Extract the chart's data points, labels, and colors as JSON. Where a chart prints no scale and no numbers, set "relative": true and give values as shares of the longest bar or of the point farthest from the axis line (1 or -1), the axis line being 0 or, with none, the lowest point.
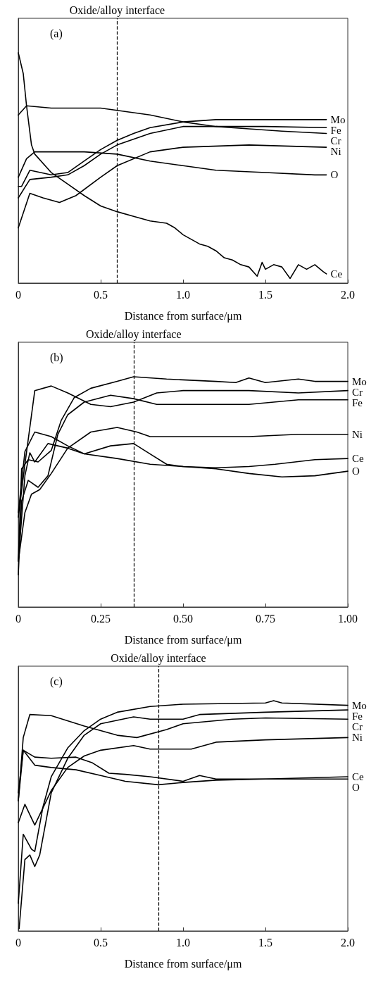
{
  "chart_data": [
    {
      "type": "line",
      "title": "(a)",
      "xlabel": "Distance from surface/μm",
      "relative": true,
      "xlim": [
        0,
        2
      ],
      "xticks": [
        0,
        0.5,
        {
          "value": 1,
          "label": "1.0"
        },
        1.5,
        {
          "value": 2,
          "label": "2.0"
        }
      ],
      "tick_labels": "x",
      "grid": false,
      "legend": false,
      "marker": "none",
      "line_style": "solid",
      "ref_lines": [
        {
          "axis": "x",
          "value": 0.6,
          "label": "Oxide/alloy interface",
          "line_style": "dashed"
        }
      ],
      "series": [
        {
          "name": "Cr",
          "color": "#000000",
          "x": [
            0,
            0.05,
            0.2,
            0.5,
            0.6,
            0.8,
            1.0,
            1.2,
            1.4,
            1.6,
            1.87
          ],
          "values": [
            0.73,
            0.77,
            0.76,
            0.76,
            0.75,
            0.73,
            0.7,
            0.68,
            0.67,
            0.66,
            0.65
          ]
        },
        {
          "name": "Mo",
          "color": "#000000",
          "x": [
            0,
            0.02,
            0.07,
            0.2,
            0.3,
            0.4,
            0.5,
            0.6,
            0.7,
            0.8,
            1.0,
            1.2,
            1.5,
            1.87
          ],
          "values": [
            0.42,
            0.42,
            0.49,
            0.47,
            0.48,
            0.53,
            0.58,
            0.62,
            0.65,
            0.675,
            0.7,
            0.71,
            0.71,
            0.71
          ]
        },
        {
          "name": "Fe",
          "color": "#000000",
          "x": [
            0,
            0.07,
            0.2,
            0.3,
            0.4,
            0.5,
            0.6,
            0.8,
            1.0,
            1.2,
            1.5,
            1.87
          ],
          "values": [
            0.37,
            0.45,
            0.46,
            0.47,
            0.51,
            0.56,
            0.6,
            0.65,
            0.68,
            0.68,
            0.68,
            0.675
          ]
        },
        {
          "name": "Ni",
          "color": "#000000",
          "x": [
            0,
            0.07,
            0.15,
            0.25,
            0.35,
            0.5,
            0.6,
            0.8,
            1.0,
            1.4,
            1.87
          ],
          "values": [
            0.24,
            0.39,
            0.37,
            0.35,
            0.38,
            0.46,
            0.51,
            0.57,
            0.59,
            0.6,
            0.59
          ]
        },
        {
          "name": "O",
          "color": "#000000",
          "x": [
            0,
            0.05,
            0.1,
            0.4,
            0.6,
            0.8,
            1.0,
            1.2,
            1.5,
            1.8,
            1.87
          ],
          "values": [
            0.46,
            0.54,
            0.57,
            0.57,
            0.56,
            0.53,
            0.51,
            0.49,
            0.48,
            0.47,
            0.47
          ]
        },
        {
          "name": "Ce",
          "color": "#000000",
          "x": [
            0,
            0.03,
            0.05,
            0.08,
            0.1,
            0.2,
            0.3,
            0.4,
            0.5,
            0.6,
            0.7,
            0.8,
            0.9,
            0.95,
            1.0,
            1.05,
            1.1,
            1.15,
            1.2,
            1.25,
            1.3,
            1.35,
            1.4,
            1.45,
            1.48,
            1.5,
            1.55,
            1.6,
            1.65,
            1.7,
            1.75,
            1.8,
            1.85,
            1.87
          ],
          "values": [
            1.0,
            0.91,
            0.77,
            0.6,
            0.56,
            0.48,
            0.43,
            0.38,
            0.335,
            0.31,
            0.29,
            0.27,
            0.26,
            0.24,
            0.21,
            0.19,
            0.17,
            0.16,
            0.14,
            0.11,
            0.1,
            0.08,
            0.07,
            0.03,
            0.09,
            0.06,
            0.08,
            0.07,
            0.02,
            0.08,
            0.06,
            0.08,
            0.05,
            0.04
          ]
        }
      ]
    },
    {
      "type": "line",
      "title": "(b)",
      "xlabel": "Distance from surface/μm",
      "relative": true,
      "xlim": [
        0,
        1
      ],
      "xticks": [
        0,
        0.25,
        {
          "value": 0.5,
          "label": "0.50"
        },
        0.75,
        {
          "value": 1,
          "label": "1.00"
        }
      ],
      "tick_labels": "x",
      "grid": false,
      "legend": false,
      "marker": "none",
      "line_style": "solid",
      "ref_lines": [
        {
          "axis": "x",
          "value": 0.35,
          "label": "Oxide/alloy interface",
          "line_style": "dashed"
        }
      ],
      "series": [
        {
          "name": "Mo",
          "color": "#000000",
          "x": [
            0,
            0.01,
            0.03,
            0.06,
            0.1,
            0.13,
            0.17,
            0.22,
            0.3,
            0.35,
            0.45,
            0.6,
            0.66,
            0.7,
            0.75,
            0.85,
            0.9,
            1.0
          ],
          "values": [
            0.2,
            0.6,
            0.64,
            0.63,
            0.68,
            0.81,
            0.91,
            0.95,
            0.98,
            1.0,
            0.99,
            0.98,
            0.975,
            0.995,
            0.975,
            0.99,
            0.98,
            0.98
          ]
        },
        {
          "name": "Cr",
          "color": "#000000",
          "x": [
            0,
            0.02,
            0.05,
            0.1,
            0.15,
            0.22,
            0.28,
            0.35,
            0.42,
            0.5,
            0.7,
            0.85,
            1.0
          ],
          "values": [
            0.39,
            0.62,
            0.94,
            0.96,
            0.93,
            0.88,
            0.87,
            0.89,
            0.93,
            0.94,
            0.94,
            0.93,
            0.94
          ]
        },
        {
          "name": "Fe",
          "color": "#000000",
          "x": [
            0,
            0.01,
            0.03,
            0.06,
            0.09,
            0.12,
            0.15,
            0.2,
            0.28,
            0.35,
            0.42,
            0.5,
            0.7,
            0.85,
            1.0
          ],
          "values": [
            0.14,
            0.46,
            0.55,
            0.52,
            0.57,
            0.75,
            0.835,
            0.89,
            0.92,
            0.905,
            0.88,
            0.88,
            0.88,
            0.9,
            0.9
          ]
        },
        {
          "name": "Ni",
          "color": "#000000",
          "x": [
            0,
            0.02,
            0.04,
            0.065,
            0.1,
            0.15,
            0.22,
            0.3,
            0.36,
            0.4,
            0.5,
            0.7,
            0.85,
            1.0
          ],
          "values": [
            0.2,
            0.41,
            0.49,
            0.51,
            0.58,
            0.69,
            0.76,
            0.78,
            0.76,
            0.74,
            0.74,
            0.74,
            0.75,
            0.75
          ]
        },
        {
          "name": "Ce",
          "color": "#000000",
          "x": [
            0,
            0.02,
            0.035,
            0.05,
            0.09,
            0.15,
            0.2,
            0.28,
            0.35,
            0.4,
            0.45,
            0.5,
            0.6,
            0.7,
            0.78,
            0.9,
            1.0
          ],
          "values": [
            0.2,
            0.57,
            0.67,
            0.63,
            0.71,
            0.69,
            0.665,
            0.7,
            0.71,
            0.665,
            0.62,
            0.61,
            0.605,
            0.61,
            0.62,
            0.64,
            0.645
          ]
        },
        {
          "name": "O",
          "color": "#000000",
          "x": [
            0,
            0.02,
            0.05,
            0.1,
            0.15,
            0.2,
            0.3,
            0.4,
            0.5,
            0.6,
            0.7,
            0.8,
            0.9,
            1.0
          ],
          "values": [
            0.41,
            0.675,
            0.76,
            0.74,
            0.7,
            0.665,
            0.645,
            0.62,
            0.61,
            0.6,
            0.58,
            0.565,
            0.57,
            0.59
          ]
        }
      ]
    },
    {
      "type": "line",
      "title": "(c)",
      "xlabel": "Distance from surface/μm",
      "relative": true,
      "xlim": [
        0,
        2
      ],
      "xticks": [
        0,
        0.5,
        {
          "value": 1,
          "label": "1.0"
        },
        1.5,
        {
          "value": 2,
          "label": "2.0"
        }
      ],
      "tick_labels": "x",
      "grid": false,
      "legend": false,
      "marker": "none",
      "line_style": "solid",
      "ref_lines": [
        {
          "axis": "x",
          "value": 0.85,
          "label": "Oxide/alloy interface",
          "line_style": "dashed"
        }
      ],
      "series": [
        {
          "name": "Mo",
          "color": "#000000",
          "x": [
            0,
            0.03,
            0.08,
            0.1,
            0.15,
            0.2,
            0.3,
            0.4,
            0.5,
            0.6,
            0.8,
            1.0,
            1.5,
            1.55,
            1.6,
            2.0
          ],
          "values": [
            0.12,
            0.42,
            0.355,
            0.345,
            0.54,
            0.67,
            0.795,
            0.87,
            0.92,
            0.95,
            0.975,
            0.985,
            0.99,
            1.0,
            0.99,
            0.98
          ]
        },
        {
          "name": "Fe",
          "color": "#000000",
          "x": [
            0.005,
            0.04,
            0.07,
            0.1,
            0.13,
            0.2,
            0.3,
            0.4,
            0.5,
            0.7,
            0.8,
            1.0,
            1.1,
            1.5,
            2.0
          ],
          "values": [
            0.01,
            0.31,
            0.33,
            0.28,
            0.33,
            0.6,
            0.75,
            0.85,
            0.9,
            0.93,
            0.92,
            0.92,
            0.94,
            0.95,
            0.96
          ]
        },
        {
          "name": "Cr",
          "color": "#000000",
          "x": [
            0,
            0.03,
            0.07,
            0.2,
            0.4,
            0.6,
            0.72,
            0.9,
            1.0,
            1.3,
            1.5,
            2.0
          ],
          "values": [
            0.565,
            0.84,
            0.94,
            0.935,
            0.89,
            0.85,
            0.84,
            0.875,
            0.9,
            0.92,
            0.925,
            0.92
          ]
        },
        {
          "name": "Ni",
          "color": "#000000",
          "x": [
            0,
            0.04,
            0.1,
            0.2,
            0.3,
            0.4,
            0.5,
            0.7,
            0.8,
            1.05,
            1.2,
            1.5,
            2.0
          ],
          "values": [
            0.47,
            0.55,
            0.46,
            0.61,
            0.71,
            0.76,
            0.785,
            0.805,
            0.79,
            0.79,
            0.82,
            0.83,
            0.84
          ]
        },
        {
          "name": "Ce",
          "color": "#000000",
          "x": [
            0,
            0.03,
            0.1,
            0.2,
            0.35,
            0.45,
            0.55,
            0.65,
            0.8,
            1.0,
            1.1,
            1.2,
            1.5,
            2.0
          ],
          "values": [
            0.565,
            0.785,
            0.755,
            0.75,
            0.755,
            0.73,
            0.685,
            0.68,
            0.67,
            0.65,
            0.675,
            0.66,
            0.66,
            0.67
          ]
        },
        {
          "name": "O",
          "color": "#000000",
          "x": [
            0,
            0.03,
            0.1,
            0.2,
            0.35,
            0.5,
            0.65,
            0.85,
            1.0,
            1.2,
            1.5,
            2.0
          ],
          "values": [
            0.6,
            0.785,
            0.72,
            0.71,
            0.7,
            0.675,
            0.65,
            0.635,
            0.645,
            0.655,
            0.66,
            0.66
          ]
        }
      ]
    }
  ]
}
